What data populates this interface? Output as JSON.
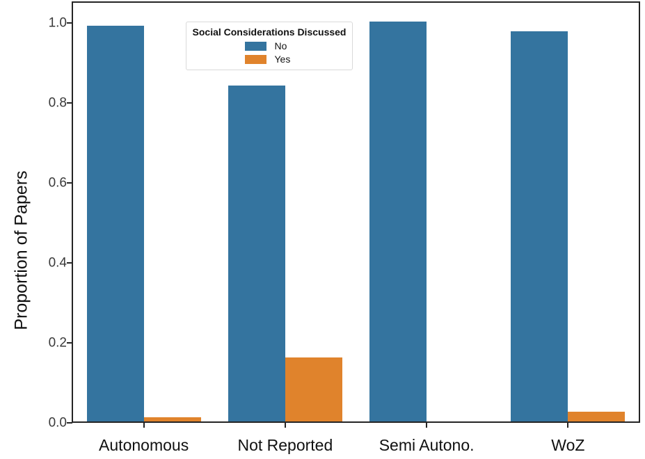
{
  "chart_data": {
    "type": "bar",
    "title": "",
    "xlabel": "",
    "ylabel": "Proportion of Papers",
    "categories": [
      "Autonomous",
      "Not Reported",
      "Semi Autono.",
      "WoZ"
    ],
    "series": [
      {
        "name": "No",
        "color": "#34749F",
        "values": [
          0.99,
          0.84,
          1.0,
          0.975
        ]
      },
      {
        "name": "Yes",
        "color": "#E0832C",
        "values": [
          0.01,
          0.16,
          0.0,
          0.025
        ]
      }
    ],
    "legend_title": "Social Considerations Discussed",
    "legend_position": "upper center-left, inside plot",
    "yticks": [
      0.0,
      0.2,
      0.4,
      0.6,
      0.8,
      1.0
    ],
    "ylim": [
      0,
      1.05
    ],
    "grid": false,
    "spine_color": "#242424",
    "tick_label_color": "#3a3a3a"
  }
}
